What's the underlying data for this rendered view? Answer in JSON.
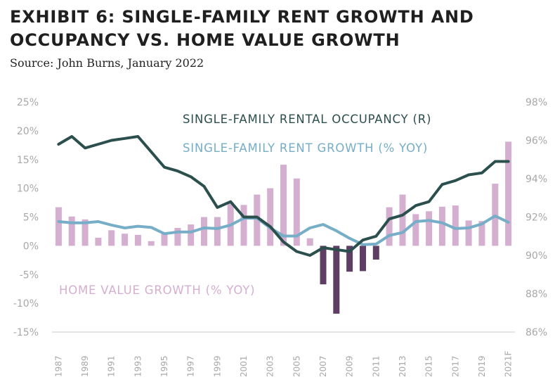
{
  "title_line1": "EXHIBIT 6: SINGLE-FAMILY RENT GROWTH AND",
  "title_line2": "OCCUPANCY VS. HOME VALUE GROWTH",
  "source": "Source: John Burns, January 2022",
  "colors": {
    "bars_positive": "#d4afd0",
    "bars_negative": "#5e3f63",
    "occupancy_line": "#2b4f4d",
    "rent_line": "#76adc7",
    "axis_text": "#a8a8a8"
  },
  "chart_data": {
    "type": "bar",
    "categories": [
      "1987",
      "1988",
      "1989",
      "1990",
      "1991",
      "1992",
      "1993",
      "1994",
      "1995",
      "1996",
      "1997",
      "1998",
      "1999",
      "2000",
      "2001",
      "2002",
      "2003",
      "2004",
      "2005",
      "2006",
      "2007",
      "2008",
      "2009",
      "2010",
      "2011",
      "2012",
      "2013",
      "2014",
      "2015",
      "2016",
      "2017",
      "2018",
      "2019",
      "2020",
      "2021F"
    ],
    "x_tick_labels": [
      "1987",
      "1989",
      "1991",
      "1993",
      "1995",
      "1997",
      "1999",
      "2001",
      "2003",
      "2005",
      "2007",
      "2009",
      "2011",
      "2013",
      "2015",
      "2017",
      "2019",
      "2021F"
    ],
    "left_axis": {
      "ylim": [
        -15,
        25
      ],
      "ticks": [
        "-15%",
        "-10%",
        "-5%",
        "0%",
        "5%",
        "10%",
        "15%",
        "20%",
        "25%"
      ]
    },
    "right_axis": {
      "ylim": [
        86,
        98
      ],
      "ticks": [
        "86%",
        "88%",
        "90%",
        "92%",
        "94%",
        "96%",
        "98%"
      ]
    },
    "series": [
      {
        "name": "HOME VALUE GROWTH (% YOY)",
        "kind": "bar",
        "axis": "left",
        "values": [
          6.7,
          5.1,
          4.6,
          1.4,
          2.7,
          2.1,
          1.9,
          0.8,
          2.2,
          3.1,
          3.7,
          5.0,
          5.0,
          7.5,
          7.1,
          8.9,
          10.0,
          14.1,
          11.7,
          1.3,
          -6.7,
          -11.8,
          -4.5,
          -4.4,
          -2.4,
          6.7,
          8.9,
          5.5,
          6.0,
          6.8,
          7.0,
          4.4,
          4.3,
          10.8,
          18.1
        ]
      },
      {
        "name": "SINGLE-FAMILY RENTAL OCCUPANCY (R)",
        "kind": "line",
        "axis": "right",
        "values": [
          95.8,
          96.2,
          95.6,
          95.8,
          96.0,
          96.1,
          96.2,
          95.4,
          94.6,
          94.4,
          94.1,
          93.6,
          92.5,
          92.8,
          92.0,
          92.0,
          91.5,
          90.7,
          90.2,
          90.0,
          90.4,
          90.3,
          90.2,
          90.8,
          91.0,
          91.9,
          92.1,
          92.6,
          92.8,
          93.7,
          93.9,
          94.2,
          94.3,
          94.9,
          94.9
        ]
      },
      {
        "name": "SINGLE-FAMILY RENT GROWTH (% YOY)",
        "kind": "line",
        "axis": "left",
        "values": [
          4.2,
          4.0,
          4.0,
          4.2,
          3.6,
          3.1,
          3.4,
          3.2,
          2.1,
          2.4,
          2.4,
          3.1,
          3.0,
          3.6,
          4.8,
          4.8,
          3.1,
          1.7,
          1.7,
          3.1,
          3.7,
          2.6,
          1.3,
          0.2,
          0.3,
          1.8,
          2.3,
          4.2,
          4.4,
          4.0,
          3.0,
          3.1,
          3.8,
          5.2,
          4.1
        ]
      }
    ]
  }
}
